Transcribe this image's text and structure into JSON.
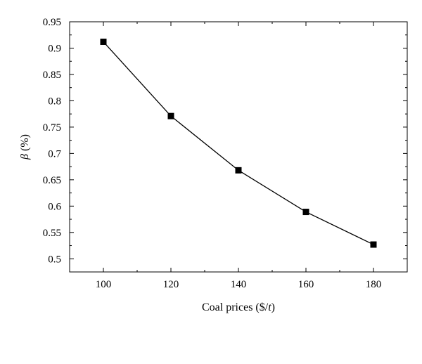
{
  "chart_data": {
    "type": "line",
    "xlabel": "Coal prices ($/t)",
    "xlabel_parts": {
      "prefix": "Coal prices ($/",
      "italic": "t",
      "suffix": ")"
    },
    "ylabel": "β (%)",
    "ylabel_parts": {
      "italic": "β",
      "rest": " (%)"
    },
    "xlim": [
      90,
      190
    ],
    "ylim": [
      0.475,
      0.95
    ],
    "x_ticks": [
      100,
      120,
      140,
      160,
      180
    ],
    "y_ticks": [
      0.5,
      0.55,
      0.6,
      0.65,
      0.7,
      0.75,
      0.8,
      0.85,
      0.9,
      0.95
    ],
    "y_tick_labels": [
      "0.5",
      "0.55",
      "0.6",
      "0.65",
      "0.7",
      "0.75",
      "0.8",
      "0.85",
      "0.9",
      "0.95"
    ],
    "grid": false,
    "series": [
      {
        "x": [
          100,
          120,
          140,
          160,
          180
        ],
        "values": [
          0.912,
          0.771,
          0.668,
          0.589,
          0.527
        ],
        "marker": "square",
        "color": "#000000"
      }
    ]
  }
}
